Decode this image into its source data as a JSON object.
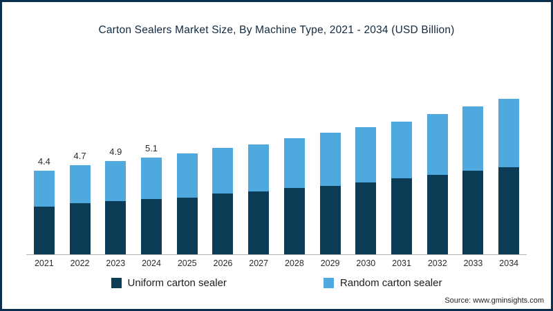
{
  "title": "Carton Sealers Market Size, By Machine Type, 2021 - 2034 (USD Billion)",
  "source": "Source: www.gminsights.com",
  "legend": [
    {
      "label": "Uniform carton sealer",
      "color": "#0c3c56"
    },
    {
      "label": "Random carton sealer",
      "color": "#4fa8de"
    }
  ],
  "chart_data": {
    "type": "bar",
    "stacked": true,
    "title": "Carton Sealers Market Size, By Machine Type, 2021 - 2034 (USD Billion)",
    "xlabel": "",
    "ylabel": "",
    "ylim": [
      0,
      9
    ],
    "grid": false,
    "legend_position": "bottom",
    "categories": [
      "2021",
      "2022",
      "2023",
      "2024",
      "2025",
      "2026",
      "2027",
      "2028",
      "2029",
      "2030",
      "2031",
      "2032",
      "2033",
      "2034"
    ],
    "series": [
      {
        "name": "Uniform carton sealer",
        "color": "#0c3c56",
        "values": [
          2.5,
          2.7,
          2.8,
          2.9,
          3.0,
          3.2,
          3.3,
          3.5,
          3.6,
          3.8,
          4.0,
          4.2,
          4.4,
          4.6
        ]
      },
      {
        "name": "Random carton sealer",
        "color": "#4fa8de",
        "values": [
          1.9,
          2.0,
          2.1,
          2.2,
          2.3,
          2.4,
          2.5,
          2.6,
          2.8,
          2.9,
          3.0,
          3.2,
          3.4,
          3.6
        ]
      }
    ],
    "totals": [
      4.4,
      4.7,
      4.9,
      5.1,
      5.3,
      5.6,
      5.8,
      6.1,
      6.4,
      6.7,
      7.0,
      7.4,
      7.8,
      8.2
    ],
    "data_labels": [
      "4.4",
      "4.7",
      "4.9",
      "5.1",
      null,
      null,
      null,
      null,
      null,
      null,
      null,
      null,
      null,
      null
    ]
  }
}
